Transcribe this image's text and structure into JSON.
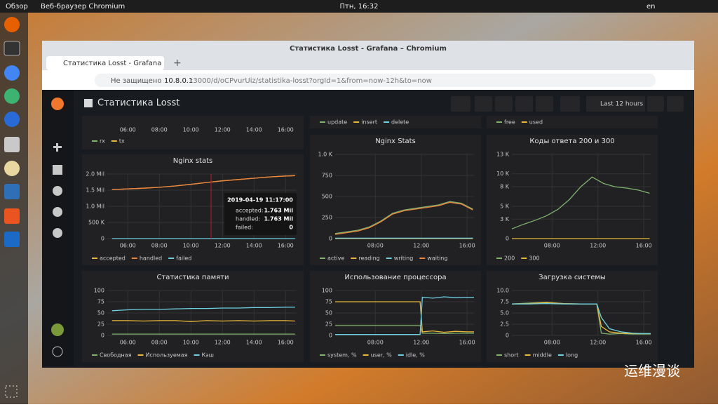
{
  "desktop": {
    "activities": "Обзор",
    "app": "Веб-браузер Chromium",
    "clock": "Птн, 16:32",
    "lang": "en",
    "watermark": "运维漫谈"
  },
  "browser": {
    "window_title": "Статистика Losst - Grafana – Chromium",
    "tab": "Статистика Losst - Grafana",
    "security": "Не защищено",
    "url_host": "10.8.0.1",
    "url_path": ":3000/d/oCPvurUiz/statistika-losst?orgId=1&from=now-12h&to=now"
  },
  "dashboard": {
    "title": "Статистика Losst",
    "time_range": "Last 12 hours",
    "panels": [
      {
        "type": "line",
        "xlim": [
          4.7,
          16.7
        ],
        "xticks": [
          {
            "value": 6,
            "label": "06:00"
          },
          {
            "value": 8,
            "label": "08:00"
          },
          {
            "value": 10,
            "label": "10:00"
          },
          {
            "value": 12,
            "label": "12:00"
          },
          {
            "value": 14,
            "label": "14:00"
          },
          {
            "value": 16,
            "label": "16:00"
          }
        ],
        "series": [
          {
            "name": "rx",
            "color": "#7eb26d"
          },
          {
            "name": "tx",
            "color": "#eab839"
          }
        ]
      },
      {
        "type": "line",
        "series": [
          {
            "name": "update",
            "color": "#7eb26d"
          },
          {
            "name": "insert",
            "color": "#eab839"
          },
          {
            "name": "delete",
            "color": "#6ed0e0"
          }
        ]
      },
      {
        "type": "line",
        "series": [
          {
            "name": "free",
            "color": "#7eb26d"
          },
          {
            "name": "used",
            "color": "#eab839"
          }
        ]
      },
      {
        "type": "line",
        "title": "Nginx stats",
        "xlim": [
          4.7,
          16.7
        ],
        "ylim": [
          0,
          2000000
        ],
        "xticks": [
          {
            "value": 6,
            "label": "06:00"
          },
          {
            "value": 8,
            "label": "08:00"
          },
          {
            "value": 10,
            "label": "10:00"
          },
          {
            "value": 12,
            "label": "12:00"
          },
          {
            "value": 14,
            "label": "14:00"
          },
          {
            "value": 16,
            "label": "16:00"
          }
        ],
        "yticks": [
          0,
          {
            "value": 500000,
            "label": "500 K"
          },
          {
            "value": 1000000,
            "label": "1.0 Mil"
          },
          {
            "value": 1500000,
            "label": "1.5 Mil"
          },
          {
            "value": 2000000,
            "label": "2.0 Mil"
          }
        ],
        "x": [
          5,
          6,
          7,
          8,
          9,
          10,
          11,
          12,
          13,
          14,
          15,
          16,
          16.6
        ],
        "series": [
          {
            "name": "accepted",
            "color": "#eab839",
            "values": [
              1520000,
              1540000,
              1560000,
              1590000,
              1630000,
              1680000,
              1740000,
              1790000,
              1830000,
              1870000,
              1910000,
              1940000,
              1950000
            ]
          },
          {
            "name": "handled",
            "color": "#ef843c",
            "values": [
              1520000,
              1540000,
              1560000,
              1590000,
              1630000,
              1680000,
              1740000,
              1790000,
              1830000,
              1870000,
              1910000,
              1940000,
              1950000
            ]
          },
          {
            "name": "failed",
            "color": "#6ed0e0",
            "values": [
              0,
              0,
              0,
              0,
              0,
              0,
              0,
              0,
              0,
              0,
              0,
              0,
              0
            ]
          }
        ],
        "tooltip": {
          "time": "2019-04-19 11:17:00",
          "rows": [
            {
              "name": "accepted:",
              "value": "1.763 Mil"
            },
            {
              "name": "handled:",
              "value": "1.763 Mil"
            },
            {
              "name": "failed:",
              "value": "0"
            }
          ]
        }
      },
      {
        "type": "line",
        "title": "Nginx Stats",
        "xlim": [
          4.5,
          16.6
        ],
        "ylim": [
          0,
          1000
        ],
        "xticks": [
          {
            "value": 8,
            "label": "08:00"
          },
          {
            "value": 12,
            "label": "12:00"
          },
          {
            "value": 16,
            "label": "16:00"
          }
        ],
        "yticks": [
          0,
          250,
          500,
          750,
          {
            "value": 1000,
            "label": "1.0 K"
          }
        ],
        "x": [
          4.5,
          5.5,
          6.5,
          7.5,
          8.5,
          9.5,
          10.5,
          11.5,
          12.5,
          13.5,
          14.5,
          15.5,
          16.5
        ],
        "series": [
          {
            "name": "active",
            "color": "#7eb26d",
            "values": [
              60,
              80,
              100,
              140,
              210,
              300,
              340,
              360,
              380,
              400,
              440,
              420,
              350
            ]
          },
          {
            "name": "reading",
            "color": "#eab839",
            "values": [
              0,
              0,
              0,
              0,
              0,
              0,
              0,
              0,
              0,
              0,
              0,
              0,
              0
            ]
          },
          {
            "name": "writing",
            "color": "#6ed0e0",
            "values": [
              5,
              5,
              5,
              5,
              5,
              5,
              5,
              5,
              5,
              5,
              5,
              5,
              5
            ]
          },
          {
            "name": "waiting",
            "color": "#ef843c",
            "values": [
              50,
              70,
              90,
              130,
              200,
              290,
              330,
              350,
              370,
              390,
              430,
              410,
              340
            ]
          }
        ]
      },
      {
        "type": "line",
        "title": "Коды ответа 200 и 300",
        "xlim": [
          4.5,
          16.6
        ],
        "ylim": [
          0,
          13000
        ],
        "xticks": [
          {
            "value": 8,
            "label": "08:00"
          },
          {
            "value": 12,
            "label": "12:00"
          },
          {
            "value": 16,
            "label": "16:00"
          }
        ],
        "yticks": [
          0,
          {
            "value": 3000,
            "label": "3 K"
          },
          {
            "value": 5000,
            "label": "5 K"
          },
          {
            "value": 8000,
            "label": "8 K"
          },
          {
            "value": 10000,
            "label": "10 K"
          },
          {
            "value": 13000,
            "label": "13 K"
          }
        ],
        "x": [
          4.5,
          5.5,
          6.5,
          7.5,
          8.5,
          9.5,
          10.5,
          11.5,
          12.5,
          13.5,
          14.5,
          15.5,
          16.5
        ],
        "series": [
          {
            "name": "200",
            "color": "#7eb26d",
            "values": [
              1500,
              2200,
              2800,
              3500,
              4500,
              6000,
              8000,
              9500,
              8500,
              8000,
              7800,
              7500,
              7000
            ]
          },
          {
            "name": "300",
            "color": "#eab839",
            "values": [
              0,
              0,
              0,
              0,
              0,
              0,
              0,
              0,
              0,
              0,
              0,
              0,
              0
            ]
          }
        ]
      },
      {
        "type": "line",
        "title": "Статистика памяти",
        "xlim": [
          4.7,
          16.7
        ],
        "ylim": [
          0,
          100
        ],
        "xticks": [
          {
            "value": 6,
            "label": "06:00"
          },
          {
            "value": 8,
            "label": "08:00"
          },
          {
            "value": 10,
            "label": "10:00"
          },
          {
            "value": 12,
            "label": "12:00"
          },
          {
            "value": 14,
            "label": "14:00"
          },
          {
            "value": 16,
            "label": "16:00"
          }
        ],
        "yticks": [
          0,
          25,
          50,
          75,
          100
        ],
        "x": [
          5,
          6,
          7,
          8,
          9,
          10,
          11,
          12,
          13,
          14,
          15,
          16,
          16.6
        ],
        "series": [
          {
            "name": "Свободная",
            "color": "#7eb26d",
            "values": [
              3,
              3,
              3,
              3,
              3,
              3,
              3,
              3,
              3,
              3,
              3,
              3,
              3
            ]
          },
          {
            "name": "Используемая",
            "color": "#eab839",
            "values": [
              33,
              33,
              32,
              33,
              33,
              31,
              33,
              32,
              33,
              32,
              33,
              33,
              32
            ]
          },
          {
            "name": "Кэш",
            "color": "#6ed0e0",
            "values": [
              55,
              57,
              58,
              58,
              59,
              60,
              60,
              61,
              61,
              62,
              62,
              63,
              63
            ]
          }
        ]
      },
      {
        "type": "line",
        "title": "Использование процессора",
        "xlim": [
          4.5,
          16.6
        ],
        "ylim": [
          0,
          100
        ],
        "xticks": [
          {
            "value": 8,
            "label": "08:00"
          },
          {
            "value": 12,
            "label": "12:00"
          },
          {
            "value": 16,
            "label": "16:00"
          }
        ],
        "yticks": [
          0,
          25,
          50,
          75,
          100
        ],
        "x": [
          4.5,
          6,
          7.5,
          9,
          10.5,
          11.9,
          12.1,
          13,
          14,
          15,
          16,
          16.6
        ],
        "series": [
          {
            "name": "system, %",
            "color": "#7eb26d",
            "values": [
              22,
              22,
              22,
              22,
              22,
              22,
              5,
              5,
              4,
              5,
              5,
              5
            ]
          },
          {
            "name": "user, %",
            "color": "#eab839",
            "values": [
              75,
              75,
              75,
              75,
              75,
              75,
              8,
              10,
              7,
              9,
              8,
              8
            ]
          },
          {
            "name": "idle, %",
            "color": "#6ed0e0",
            "values": [
              2,
              2,
              2,
              2,
              2,
              2,
              85,
              83,
              86,
              84,
              85,
              85
            ]
          }
        ]
      },
      {
        "type": "line",
        "title": "Загрузка системы",
        "xlim": [
          4.5,
          16.6
        ],
        "ylim": [
          0,
          10
        ],
        "xticks": [
          {
            "value": 8,
            "label": "08:00"
          },
          {
            "value": 12,
            "label": "12:00"
          },
          {
            "value": 16,
            "label": "16:00"
          }
        ],
        "yticks": [
          0,
          2.5,
          {
            "value": 5,
            "label": "5.0"
          },
          7.5,
          {
            "value": 10,
            "label": "10.0"
          }
        ],
        "x": [
          4.5,
          6,
          7.5,
          9,
          10.5,
          11.9,
          12.3,
          13,
          14,
          15,
          16,
          16.6
        ],
        "series": [
          {
            "name": "short",
            "color": "#7eb26d",
            "values": [
              7,
              7.2,
              7.4,
              7.1,
              7,
              7,
              0.5,
              0.3,
              0.4,
              0.3,
              0.3,
              0.3
            ]
          },
          {
            "name": "middle",
            "color": "#eab839",
            "values": [
              7,
              7.1,
              7.3,
              7.1,
              7,
              7,
              2,
              0.8,
              0.5,
              0.4,
              0.4,
              0.4
            ]
          },
          {
            "name": "long",
            "color": "#6ed0e0",
            "values": [
              7,
              7,
              7.1,
              7,
              7,
              7,
              4,
              1.5,
              0.8,
              0.5,
              0.4,
              0.4
            ]
          }
        ]
      }
    ]
  }
}
